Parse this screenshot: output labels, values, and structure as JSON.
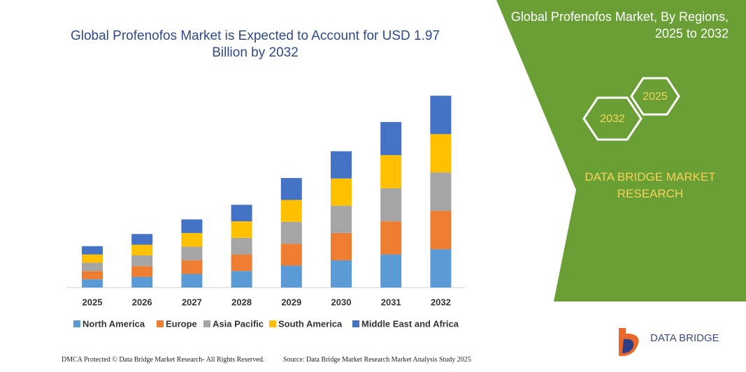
{
  "chart_data": {
    "type": "stacked_bar",
    "title": "Global Profenofos Market is Expected to Account for USD 1.97 Billion by 2032",
    "categories": [
      "2025",
      "2026",
      "2027",
      "2028",
      "2029",
      "2030",
      "2031",
      "2032"
    ],
    "series": [
      {
        "name": "North America",
        "color": "#5b9bd5",
        "values": [
          0.085,
          0.11,
          0.14,
          0.17,
          0.225,
          0.28,
          0.34,
          0.394
        ]
      },
      {
        "name": "Europe",
        "color": "#ed7d31",
        "values": [
          0.085,
          0.11,
          0.14,
          0.17,
          0.225,
          0.28,
          0.34,
          0.394
        ]
      },
      {
        "name": "Asia Pacific",
        "color": "#a5a5a5",
        "values": [
          0.085,
          0.11,
          0.14,
          0.17,
          0.225,
          0.28,
          0.34,
          0.394
        ]
      },
      {
        "name": "South America",
        "color": "#ffc000",
        "values": [
          0.085,
          0.11,
          0.14,
          0.17,
          0.225,
          0.28,
          0.34,
          0.394
        ]
      },
      {
        "name": "Middle East and Africa",
        "color": "#4472c4",
        "values": [
          0.085,
          0.11,
          0.14,
          0.17,
          0.225,
          0.28,
          0.34,
          0.394
        ]
      }
    ],
    "ylim": [
      0,
      2.0
    ]
  },
  "panel": {
    "title": "Global Profenofos Market, By Regions, 2025 to 2032",
    "badges": [
      "2025",
      "2032"
    ],
    "brand": "DATA BRIDGE MARKET RESEARCH"
  },
  "logo": "DATA BRIDGE",
  "footer": {
    "left": "DMCA Protected © Data Bridge Market Research- All Rights Reserved.",
    "right": "Source: Data Bridge Market Research Market Analysis Study 2025"
  }
}
